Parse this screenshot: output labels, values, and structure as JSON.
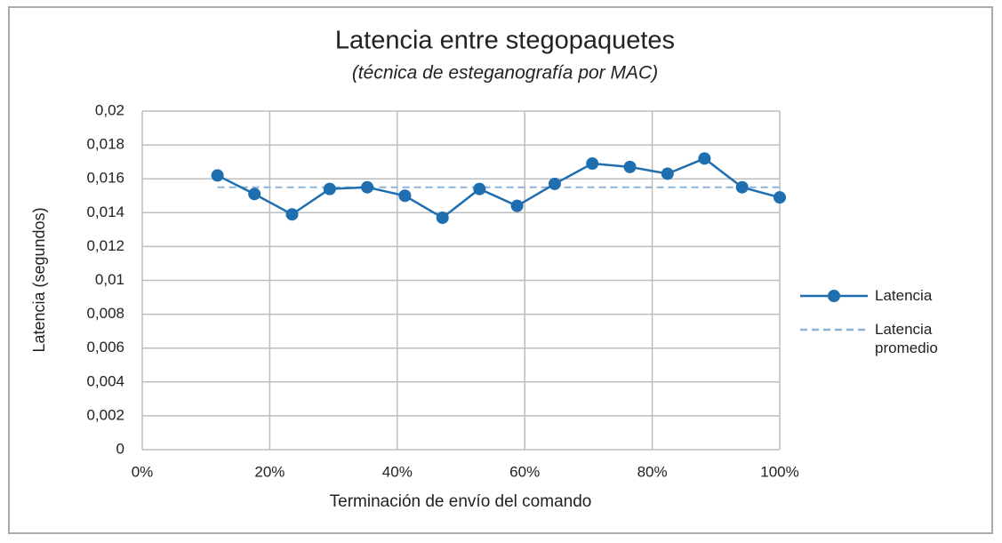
{
  "chart_data": {
    "type": "line",
    "title": "Latencia entre stegopaquetes",
    "subtitle": "(técnica de esteganografía por MAC)",
    "x_label": "Terminación de envío del comando",
    "y_label": "Latencia (segundos)",
    "x": [
      11.8,
      17.6,
      23.5,
      29.4,
      35.3,
      41.2,
      47.1,
      52.9,
      58.8,
      64.7,
      70.6,
      76.5,
      82.4,
      88.2,
      94.1,
      100
    ],
    "series": [
      {
        "name": "Latencia",
        "color": "#1f6fb0",
        "style": "solid",
        "markers": true,
        "values": [
          0.0162,
          0.0151,
          0.0139,
          0.0154,
          0.0155,
          0.015,
          0.0137,
          0.0154,
          0.0144,
          0.0157,
          0.0169,
          0.0167,
          0.0163,
          0.0172,
          0.0155,
          0.0149
        ]
      },
      {
        "name": "Latencia promedio",
        "color": "#8fb3d6",
        "style": "dashed",
        "markers": false,
        "values": [
          0.0155,
          0.0155,
          0.0155,
          0.0155,
          0.0155,
          0.0155,
          0.0155,
          0.0155,
          0.0155,
          0.0155,
          0.0155,
          0.0155,
          0.0155,
          0.0155,
          0.0155,
          0.0155
        ]
      }
    ],
    "xlim": [
      0,
      100
    ],
    "xticks": [
      {
        "value": 0,
        "label": "0%"
      },
      {
        "value": 20,
        "label": "20%"
      },
      {
        "value": 40,
        "label": "40%"
      },
      {
        "value": 60,
        "label": "60%"
      },
      {
        "value": 80,
        "label": "80%"
      },
      {
        "value": 100,
        "label": "100%"
      }
    ],
    "ylim": [
      0,
      0.02
    ],
    "yticks": [
      0,
      {
        "value": 0.002,
        "label": "0,002"
      },
      {
        "value": 0.004,
        "label": "0,004"
      },
      {
        "value": 0.006,
        "label": "0,006"
      },
      {
        "value": 0.008,
        "label": "0,008"
      },
      {
        "value": 0.01,
        "label": "0,01"
      },
      {
        "value": 0.012,
        "label": "0,012"
      },
      {
        "value": 0.014,
        "label": "0,014"
      },
      {
        "value": 0.016,
        "label": "0,016"
      },
      {
        "value": 0.018,
        "label": "0,018"
      },
      {
        "value": 0.02,
        "label": "0,02"
      }
    ],
    "grid": true,
    "legend": "right"
  }
}
